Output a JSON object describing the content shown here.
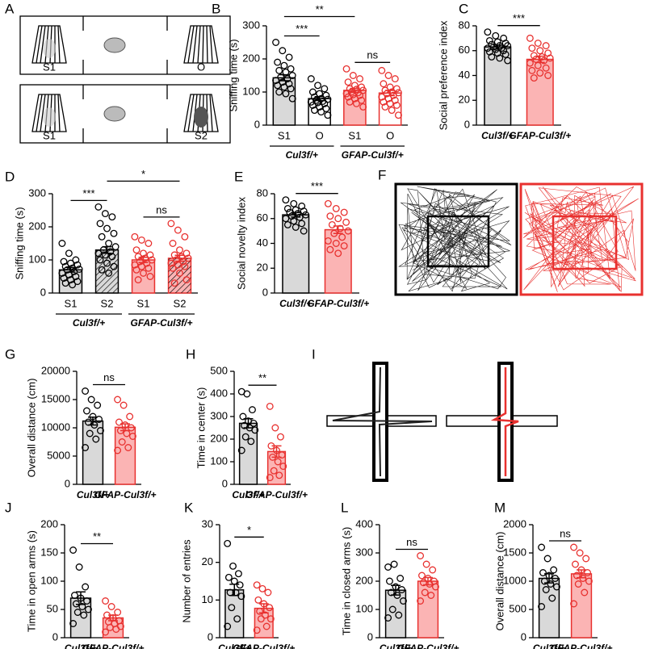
{
  "panel_a": {
    "label": "A",
    "top": [
      "S1",
      "O"
    ],
    "bottom": [
      "S1",
      "S2"
    ]
  },
  "panel_f": {
    "label": "F"
  },
  "panel_i": {
    "label": "I"
  },
  "chart_data": [
    {
      "type": "bar",
      "panel": "B",
      "ylabel": "Sniffing time (s)",
      "ylim": [
        0,
        300
      ],
      "yticks": [
        0,
        100,
        200,
        300
      ],
      "categories": [
        "S1",
        "O",
        "S1",
        "O"
      ],
      "groups": [
        "Cul3f/+",
        "GFAP-Cul3f/+"
      ],
      "colors": [
        "#d9d9d9",
        "#ffffff",
        "#fbb4b4",
        "#ffffff"
      ],
      "edge_colors": [
        "#000000",
        "#000000",
        "#e8312f",
        "#e8312f"
      ],
      "patterns": [
        "none",
        "none",
        "none",
        "none"
      ],
      "values": [
        143,
        80,
        105,
        97
      ],
      "errors": [
        9,
        6,
        6,
        8
      ],
      "points": [
        [
          250,
          225,
          205,
          190,
          180,
          170,
          165,
          160,
          150,
          145,
          140,
          135,
          130,
          125,
          120,
          115,
          110,
          100,
          95,
          80
        ],
        [
          140,
          120,
          110,
          100,
          95,
          90,
          85,
          80,
          78,
          75,
          72,
          70,
          68,
          65,
          60,
          55,
          50,
          45,
          40,
          30
        ],
        [
          170,
          150,
          140,
          130,
          120,
          115,
          110,
          108,
          105,
          100,
          98,
          95,
          92,
          90,
          85,
          80,
          75,
          70,
          65,
          55
        ],
        [
          165,
          150,
          140,
          125,
          115,
          110,
          105,
          100,
          98,
          95,
          90,
          85,
          80,
          75,
          70,
          65,
          60,
          55,
          45,
          30
        ]
      ],
      "annotations": [
        {
          "text": "***",
          "between": [
            0,
            1
          ]
        },
        {
          "text": "ns",
          "between": [
            2,
            3
          ]
        },
        {
          "text": "**",
          "between": [
            0,
            2
          ]
        }
      ]
    },
    {
      "type": "bar",
      "panel": "C",
      "ylabel": "Social preference index",
      "ylim": [
        0,
        80
      ],
      "yticks": [
        0,
        20,
        40,
        60,
        80
      ],
      "categories": [
        "Cul3f/+",
        "GFAP-Cul3f/+"
      ],
      "colors": [
        "#d9d9d9",
        "#fbb4b4"
      ],
      "edge_colors": [
        "#000000",
        "#e8312f"
      ],
      "patterns": [
        "none",
        "none"
      ],
      "values": [
        63,
        53
      ],
      "errors": [
        1.5,
        2.5
      ],
      "points": [
        [
          75,
          72,
          70,
          68,
          67,
          66,
          65,
          64,
          64,
          63,
          62,
          62,
          61,
          60,
          59,
          58,
          57,
          55,
          54,
          52
        ],
        [
          70,
          66,
          64,
          62,
          60,
          58,
          56,
          55,
          54,
          53,
          52,
          50,
          48,
          46,
          44,
          42,
          40,
          38
        ]
      ],
      "annotations": [
        {
          "text": "***",
          "between": [
            0,
            1
          ]
        }
      ]
    },
    {
      "type": "bar",
      "panel": "D",
      "ylabel": "Sniffing time (s)",
      "ylim": [
        0,
        300
      ],
      "yticks": [
        0,
        100,
        200,
        300
      ],
      "categories": [
        "S1",
        "S2",
        "S1",
        "S2"
      ],
      "groups": [
        "Cul3f/+",
        "GFAP-Cul3f/+"
      ],
      "colors": [
        "#d9d9d9",
        "#d9d9d9",
        "#fbb4b4",
        "#fbb4b4"
      ],
      "edge_colors": [
        "#000000",
        "#000000",
        "#e8312f",
        "#e8312f"
      ],
      "patterns": [
        "none",
        "hatch",
        "none",
        "hatch"
      ],
      "values": [
        70,
        130,
        100,
        105
      ],
      "errors": [
        7,
        10,
        8,
        9
      ],
      "points": [
        [
          150,
          120,
          100,
          95,
          90,
          85,
          80,
          75,
          72,
          70,
          65,
          60,
          55,
          50,
          45,
          40,
          35,
          30,
          25
        ],
        [
          260,
          240,
          230,
          210,
          195,
          180,
          170,
          150,
          140,
          130,
          125,
          120,
          115,
          110,
          100,
          90,
          80,
          70,
          60
        ],
        [
          170,
          160,
          150,
          130,
          120,
          115,
          110,
          105,
          100,
          95,
          90,
          85,
          80,
          75,
          70,
          60,
          50,
          40
        ],
        [
          210,
          190,
          170,
          150,
          130,
          120,
          115,
          110,
          105,
          100,
          95,
          90,
          85,
          80,
          75,
          60,
          40,
          30
        ]
      ],
      "annotations": [
        {
          "text": "***",
          "between": [
            0,
            1
          ]
        },
        {
          "text": "ns",
          "between": [
            2,
            3
          ]
        },
        {
          "text": "*",
          "between": [
            1,
            3
          ]
        }
      ]
    },
    {
      "type": "bar",
      "panel": "E",
      "ylabel": "Social novelty index",
      "ylim": [
        0,
        80
      ],
      "yticks": [
        0,
        20,
        40,
        60,
        80
      ],
      "categories": [
        "Cul3f/+",
        "GFAP-Cul3f/+"
      ],
      "colors": [
        "#d9d9d9",
        "#fbb4b4"
      ],
      "edge_colors": [
        "#000000",
        "#e8312f"
      ],
      "patterns": [
        "none",
        "none"
      ],
      "values": [
        63,
        51
      ],
      "errors": [
        1.8,
        3
      ],
      "points": [
        [
          75,
          72,
          70,
          68,
          67,
          66,
          65,
          64,
          63,
          62,
          61,
          60,
          58,
          56,
          55,
          53,
          50
        ],
        [
          72,
          68,
          65,
          62,
          60,
          57,
          55,
          52,
          50,
          48,
          45,
          42,
          40,
          38,
          35,
          32
        ]
      ],
      "annotations": [
        {
          "text": "***",
          "between": [
            0,
            1
          ]
        }
      ]
    },
    {
      "type": "bar",
      "panel": "G",
      "ylabel": "Overall distance (cm)",
      "ylim": [
        0,
        20000
      ],
      "yticks": [
        0,
        5000,
        10000,
        15000,
        20000
      ],
      "categories": [
        "Cul3f/+",
        "GFAP-Cul3f/+"
      ],
      "colors": [
        "#d9d9d9",
        "#fbb4b4"
      ],
      "edge_colors": [
        "#000000",
        "#e8312f"
      ],
      "patterns": [
        "none",
        "none"
      ],
      "values": [
        11200,
        10100
      ],
      "errors": [
        700,
        600
      ],
      "points": [
        [
          16500,
          15000,
          14000,
          13000,
          12000,
          11500,
          11000,
          10500,
          9500,
          9000,
          8000,
          6500
        ],
        [
          15000,
          14000,
          12000,
          11000,
          10500,
          10000,
          9500,
          9000,
          8500,
          7500,
          6500,
          6000
        ]
      ],
      "annotations": [
        {
          "text": "ns",
          "between": [
            0,
            1
          ]
        }
      ]
    },
    {
      "type": "bar",
      "panel": "H",
      "ylabel": "Time in center (s)",
      "ylim": [
        0,
        500
      ],
      "yticks": [
        0,
        100,
        200,
        300,
        400,
        500
      ],
      "categories": [
        "Cul3f/+",
        "GFAP-Cul3f/+"
      ],
      "colors": [
        "#d9d9d9",
        "#fbb4b4"
      ],
      "edge_colors": [
        "#000000",
        "#e8312f"
      ],
      "patterns": [
        "none",
        "none"
      ],
      "values": [
        270,
        145
      ],
      "errors": [
        20,
        25
      ],
      "points": [
        [
          410,
          400,
          330,
          300,
          280,
          270,
          260,
          250,
          240,
          210,
          190,
          150
        ],
        [
          345,
          250,
          210,
          170,
          150,
          130,
          120,
          100,
          80,
          60,
          40,
          30
        ]
      ],
      "annotations": [
        {
          "text": "**",
          "between": [
            0,
            1
          ]
        }
      ]
    },
    {
      "type": "bar",
      "panel": "J",
      "ylabel": "Time in open arms (s)",
      "ylim": [
        0,
        200
      ],
      "yticks": [
        0,
        50,
        100,
        150,
        200
      ],
      "categories": [
        "Cul3f/+",
        "GFAP-Cul3f/+"
      ],
      "colors": [
        "#d9d9d9",
        "#fbb4b4"
      ],
      "edge_colors": [
        "#000000",
        "#e8312f"
      ],
      "patterns": [
        "none",
        "none"
      ],
      "values": [
        70,
        35
      ],
      "errors": [
        11,
        5
      ],
      "points": [
        [
          155,
          125,
          90,
          75,
          70,
          65,
          60,
          55,
          50,
          45,
          40,
          25
        ],
        [
          65,
          55,
          45,
          40,
          35,
          30,
          28,
          25,
          20,
          18,
          15,
          10
        ]
      ],
      "annotations": [
        {
          "text": "**",
          "between": [
            0,
            1
          ]
        }
      ]
    },
    {
      "type": "bar",
      "panel": "K",
      "ylabel": "Number of entries",
      "ylim": [
        0,
        30
      ],
      "yticks": [
        0,
        10,
        20,
        30
      ],
      "categories": [
        "Cul3f/+",
        "GFAP-Cul3f/+"
      ],
      "colors": [
        "#d9d9d9",
        "#fbb4b4"
      ],
      "edge_colors": [
        "#000000",
        "#e8312f"
      ],
      "patterns": [
        "none",
        "none"
      ],
      "values": [
        12.7,
        7.8
      ],
      "errors": [
        1.5,
        1.2
      ],
      "points": [
        [
          25,
          19,
          17,
          16,
          15,
          14,
          12,
          12,
          11,
          8,
          5,
          3
        ],
        [
          14,
          13,
          12,
          10,
          9,
          8,
          7,
          6,
          5,
          5,
          3,
          2
        ]
      ],
      "annotations": [
        {
          "text": "*",
          "between": [
            0,
            1
          ]
        }
      ]
    },
    {
      "type": "bar",
      "panel": "L",
      "ylabel": "Time in closed arms (s)",
      "ylim": [
        0,
        400
      ],
      "yticks": [
        0,
        100,
        200,
        300,
        400
      ],
      "categories": [
        "Cul3f/+",
        "GFAP-Cul3f/+"
      ],
      "colors": [
        "#d9d9d9",
        "#fbb4b4"
      ],
      "edge_colors": [
        "#000000",
        "#e8312f"
      ],
      "patterns": [
        "none",
        "none"
      ],
      "values": [
        168,
        200
      ],
      "errors": [
        17,
        13
      ],
      "points": [
        [
          250,
          260,
          210,
          200,
          180,
          170,
          160,
          150,
          130,
          100,
          80,
          70
        ],
        [
          290,
          260,
          240,
          220,
          210,
          200,
          195,
          190,
          180,
          160,
          150,
          130
        ]
      ],
      "annotations": [
        {
          "text": "ns",
          "between": [
            0,
            1
          ]
        }
      ]
    },
    {
      "type": "bar",
      "panel": "M",
      "ylabel": "Overall distance (cm)",
      "ylim": [
        0,
        2000
      ],
      "yticks": [
        0,
        500,
        1000,
        1500,
        2000
      ],
      "categories": [
        "Cul3f/+",
        "GFAP-Cul3f/+"
      ],
      "colors": [
        "#d9d9d9",
        "#fbb4b4"
      ],
      "edge_colors": [
        "#000000",
        "#e8312f"
      ],
      "patterns": [
        "none",
        "none"
      ],
      "values": [
        1050,
        1130
      ],
      "errors": [
        80,
        70
      ],
      "points": [
        [
          1600,
          1400,
          1200,
          1150,
          1100,
          1050,
          1000,
          950,
          900,
          850,
          700,
          550
        ],
        [
          1600,
          1500,
          1400,
          1300,
          1200,
          1150,
          1100,
          1050,
          1000,
          950,
          800,
          600
        ]
      ],
      "annotations": [
        {
          "text": "ns",
          "between": [
            0,
            1
          ]
        }
      ]
    }
  ]
}
